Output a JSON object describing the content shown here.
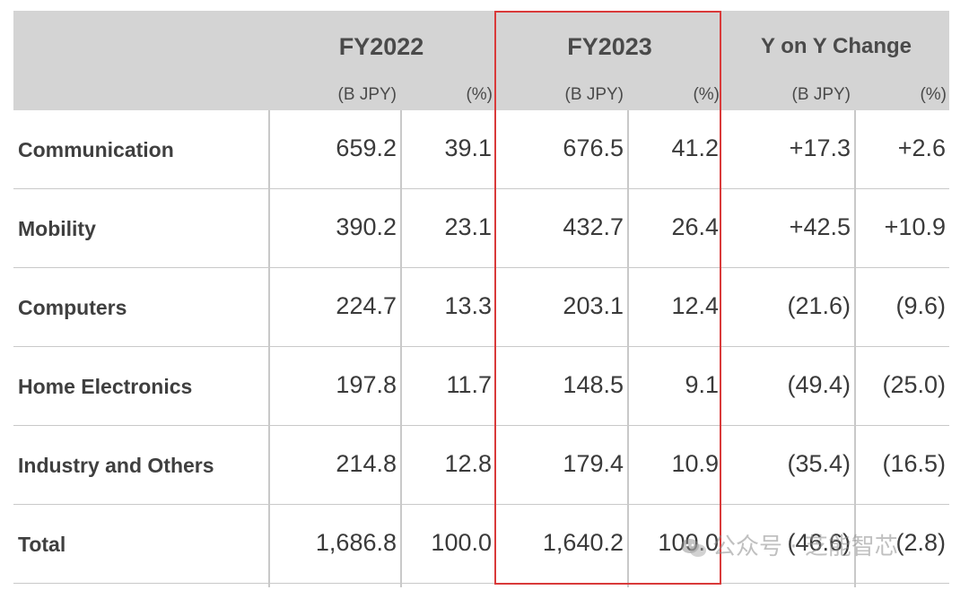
{
  "header": {
    "groups": [
      "FY2022",
      "FY2023",
      "Y on Y Change"
    ],
    "unit_amount": "(B JPY)",
    "unit_percent": "(%)"
  },
  "rows": [
    {
      "label": "Communication",
      "fy2022_amount": "659.2",
      "fy2022_pct": "39.1",
      "fy2023_amount": "676.5",
      "fy2023_pct": "41.2",
      "yoy_amount": "+17.3",
      "yoy_pct": "+2.6"
    },
    {
      "label": "Mobility",
      "fy2022_amount": "390.2",
      "fy2022_pct": "23.1",
      "fy2023_amount": "432.7",
      "fy2023_pct": "26.4",
      "yoy_amount": "+42.5",
      "yoy_pct": "+10.9"
    },
    {
      "label": "Computers",
      "fy2022_amount": "224.7",
      "fy2022_pct": "13.3",
      "fy2023_amount": "203.1",
      "fy2023_pct": "12.4",
      "yoy_amount": "(21.6)",
      "yoy_pct": "(9.6)"
    },
    {
      "label": "Home Electronics",
      "fy2022_amount": "197.8",
      "fy2022_pct": "11.7",
      "fy2023_amount": "148.5",
      "fy2023_pct": "9.1",
      "yoy_amount": "(49.4)",
      "yoy_pct": "(25.0)"
    },
    {
      "label": "Industry and Others",
      "fy2022_amount": "214.8",
      "fy2022_pct": "12.8",
      "fy2023_amount": "179.4",
      "fy2023_pct": "10.9",
      "yoy_amount": "(35.4)",
      "yoy_pct": "(16.5)"
    },
    {
      "label": "Total",
      "fy2022_amount": "1,686.8",
      "fy2022_pct": "100.0",
      "fy2023_amount": "1,640.2",
      "fy2023_pct": "100.0",
      "yoy_amount": "(46.6)",
      "yoy_pct": "(2.8)"
    }
  ],
  "watermark": {
    "text": "公众号 · 芝能智芯",
    "icon": "wechat-icon"
  },
  "colors": {
    "header_bg": "#d4d4d4",
    "highlight": "#d93a3a",
    "grid": "#c9c9c9"
  }
}
